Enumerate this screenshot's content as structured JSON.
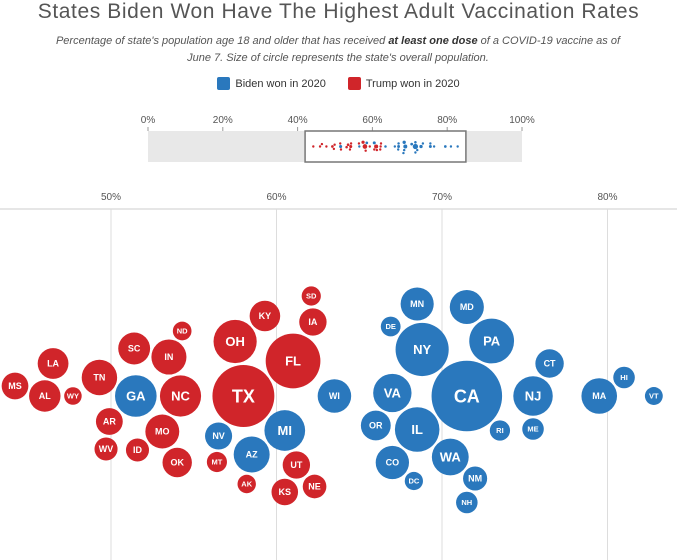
{
  "chart_data": {
    "type": "scatter",
    "style": "beeswarm",
    "title": "States Biden Won Have The Highest Adult Vaccination Rates",
    "subtitle": {
      "before": "Percentage of state's population age 18 and older that has received ",
      "bold": "at least one dose",
      "after": " of a COVID-19 vaccine as of June 7. Size of circle represents the state's overall population."
    },
    "legend": [
      {
        "key": "biden",
        "label": "Biden won in 2020",
        "color": "#2a78bd"
      },
      {
        "key": "trump",
        "label": "Trump won in 2020",
        "color": "#d0252a"
      }
    ],
    "overview_axis": {
      "range": [
        0,
        100
      ],
      "ticks": [
        "0%",
        "20%",
        "40%",
        "60%",
        "80%",
        "100%"
      ],
      "zoom_window": [
        42,
        85
      ]
    },
    "main_axis": {
      "range": [
        44,
        85
      ],
      "ticks": [
        50,
        60,
        70,
        80
      ],
      "tick_labels": [
        "50%",
        "60%",
        "70%",
        "80%"
      ]
    },
    "series": [
      {
        "name": "Biden won in 2020",
        "party": "biden",
        "points": [
          {
            "state": "MD",
            "value": 71.5,
            "population": 6.2
          },
          {
            "state": "WA",
            "value": 70.5,
            "population": 7.7
          },
          {
            "state": "RI",
            "value": 73.5,
            "population": 1.1
          },
          {
            "state": "MN",
            "value": 68.5,
            "population": 5.7
          },
          {
            "state": "OR",
            "value": 66.0,
            "population": 4.2
          },
          {
            "state": "NY",
            "value": 68.8,
            "population": 20.0
          },
          {
            "state": "PA",
            "value": 73.0,
            "population": 13.0
          },
          {
            "state": "NH",
            "value": 71.5,
            "population": 1.4
          },
          {
            "state": "NJ",
            "value": 75.5,
            "population": 9.3
          },
          {
            "state": "GA",
            "value": 51.5,
            "population": 10.7
          },
          {
            "state": "NV",
            "value": 56.5,
            "population": 3.1
          },
          {
            "state": "AZ",
            "value": 58.5,
            "population": 7.2
          },
          {
            "state": "WI",
            "value": 63.5,
            "population": 5.9
          },
          {
            "state": "DE",
            "value": 66.9,
            "population": 1.0
          },
          {
            "state": "DC",
            "value": 68.3,
            "population": 0.7
          },
          {
            "state": "CT",
            "value": 76.5,
            "population": 3.6
          },
          {
            "state": "ME",
            "value": 75.5,
            "population": 1.4
          },
          {
            "state": "CO",
            "value": 67.0,
            "population": 5.8
          },
          {
            "state": "CA",
            "value": 71.5,
            "population": 39.5
          },
          {
            "state": "MA",
            "value": 79.5,
            "population": 7.0
          },
          {
            "state": "HI",
            "value": 81.0,
            "population": 1.4
          },
          {
            "state": "VT",
            "value": 82.8,
            "population": 0.64
          },
          {
            "state": "VA",
            "value": 67.0,
            "population": 8.6
          },
          {
            "state": "NM",
            "value": 72.0,
            "population": 2.1
          },
          {
            "state": "IL",
            "value": 68.5,
            "population": 12.8
          },
          {
            "state": "MI",
            "value": 60.5,
            "population": 10.1
          }
        ]
      },
      {
        "name": "Trump won in 2020",
        "party": "trump",
        "points": [
          {
            "state": "OH",
            "value": 57.5,
            "population": 11.8
          },
          {
            "state": "FL",
            "value": 61.0,
            "population": 21.5
          },
          {
            "state": "OK",
            "value": 54.0,
            "population": 4.0
          },
          {
            "state": "ND",
            "value": 54.3,
            "population": 0.78
          },
          {
            "state": "AK",
            "value": 58.2,
            "population": 0.73
          },
          {
            "state": "MS",
            "value": 44.2,
            "population": 2.96
          },
          {
            "state": "AL",
            "value": 46.0,
            "population": 4.9
          },
          {
            "state": "WY",
            "value": 47.7,
            "population": 0.58
          },
          {
            "state": "LA",
            "value": 46.5,
            "population": 4.6
          },
          {
            "state": "AR",
            "value": 49.9,
            "population": 3.0
          },
          {
            "state": "ID",
            "value": 51.6,
            "population": 1.8
          },
          {
            "state": "WV",
            "value": 49.7,
            "population": 1.8
          },
          {
            "state": "SC",
            "value": 51.4,
            "population": 5.1
          },
          {
            "state": "TN",
            "value": 49.3,
            "population": 6.9
          },
          {
            "state": "NC",
            "value": 54.2,
            "population": 10.4
          },
          {
            "state": "IN",
            "value": 53.5,
            "population": 6.7
          },
          {
            "state": "MO",
            "value": 53.1,
            "population": 6.1
          },
          {
            "state": "MT",
            "value": 56.4,
            "population": 1.07
          },
          {
            "state": "KS",
            "value": 60.5,
            "population": 2.9
          },
          {
            "state": "SD",
            "value": 62.1,
            "population": 0.88
          },
          {
            "state": "KY",
            "value": 59.3,
            "population": 4.5
          },
          {
            "state": "UT",
            "value": 61.2,
            "population": 3.2
          },
          {
            "state": "IA",
            "value": 62.2,
            "population": 3.2
          },
          {
            "state": "NE",
            "value": 62.3,
            "population": 1.96
          },
          {
            "state": "TX",
            "value": 58.0,
            "population": 29.0
          }
        ]
      }
    ]
  }
}
